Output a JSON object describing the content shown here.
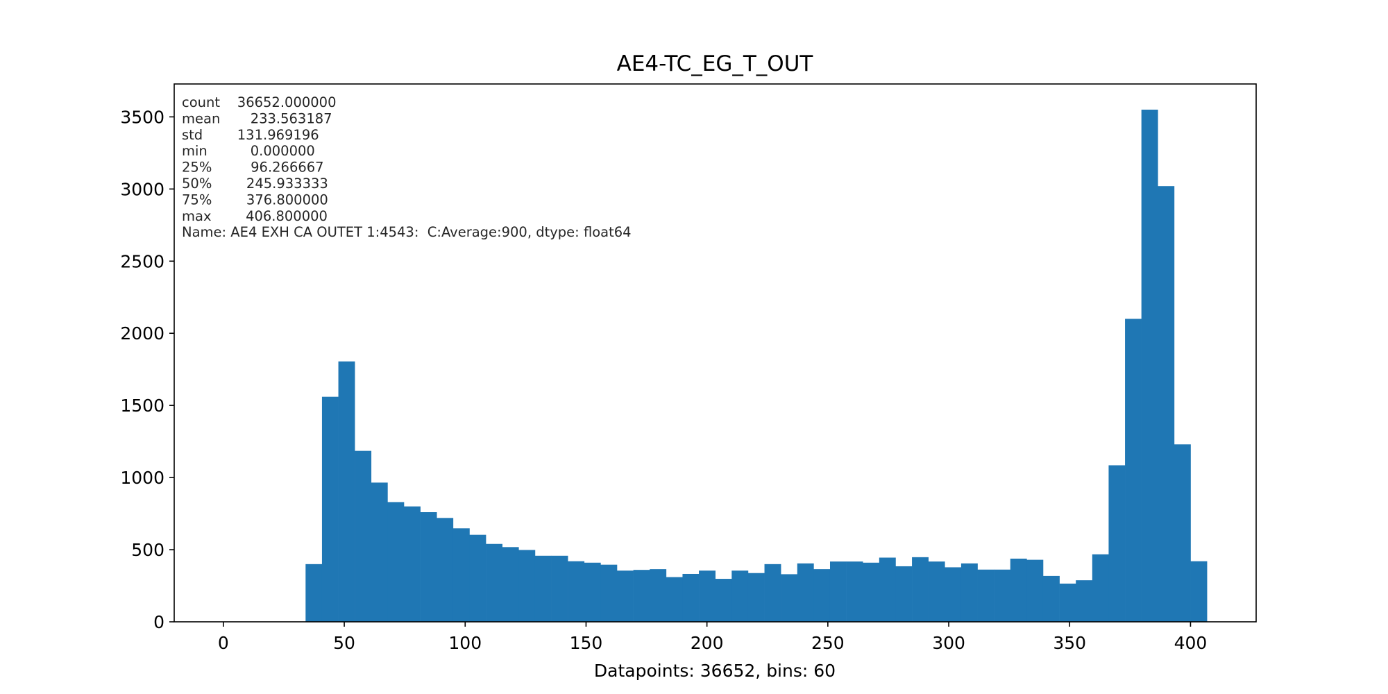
{
  "chart_data": {
    "type": "bar",
    "title": "AE4-TC_EG_T_OUT",
    "xlabel": "Datapoints: 36652, bins: 60",
    "ylabel": "",
    "xlim": [
      -20.34,
      427.14
    ],
    "ylim": [
      0,
      3728
    ],
    "grid": false,
    "bin_edges_range": [
      34.0,
      406.8
    ],
    "bin_count": 60,
    "values": [
      400,
      1560,
      1805,
      1185,
      965,
      830,
      800,
      760,
      720,
      648,
      603,
      540,
      518,
      498,
      458,
      458,
      420,
      410,
      396,
      355,
      360,
      365,
      310,
      332,
      355,
      298,
      355,
      338,
      400,
      330,
      405,
      365,
      418,
      418,
      410,
      445,
      385,
      448,
      418,
      378,
      405,
      362,
      362,
      438,
      430,
      318,
      265,
      288,
      468,
      1085,
      2100,
      3550,
      3020,
      1230,
      420
    ],
    "xticks": [
      0,
      50,
      100,
      150,
      200,
      250,
      300,
      350,
      400
    ],
    "xtick_labels": [
      "0",
      "50",
      "100",
      "150",
      "200",
      "250",
      "300",
      "350",
      "400"
    ],
    "yticks": [
      0,
      500,
      1000,
      1500,
      2000,
      2500,
      3000,
      3500
    ],
    "ytick_labels": [
      "0",
      "500",
      "1000",
      "1500",
      "2000",
      "2500",
      "3000",
      "3500"
    ],
    "bar_color": "#1f77b4",
    "annotation_lines": [
      "count    36652.000000",
      "mean       233.563187",
      "std        131.969196",
      "min          0.000000",
      "25%         96.266667",
      "50%        245.933333",
      "75%        376.800000",
      "max        406.800000",
      "Name: AE4 EXH CA OUTET 1:4543:  C:Average:900, dtype: float64"
    ]
  }
}
